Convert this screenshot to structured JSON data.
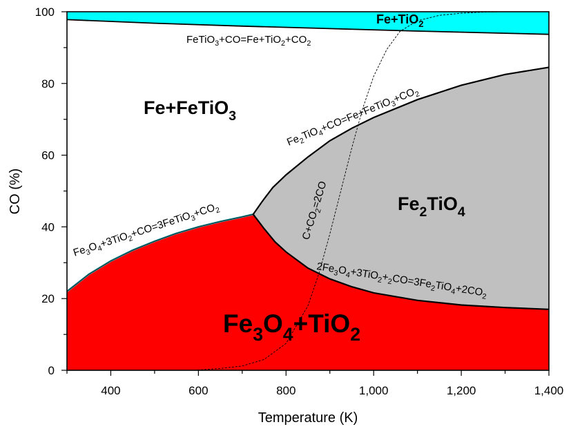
{
  "chart_data": {
    "type": "area",
    "title": "",
    "xlabel": "Temperature (K)",
    "ylabel": "CO (%)",
    "xlim": [
      300,
      1400
    ],
    "ylim": [
      0,
      100
    ],
    "x_ticks": [
      400,
      600,
      800,
      1000,
      1200,
      1400
    ],
    "x_tick_labels": [
      "400",
      "600",
      "800",
      "1,000",
      "1,200",
      "1,400"
    ],
    "y_ticks": [
      0,
      20,
      40,
      60,
      80,
      100
    ],
    "y_tick_labels": [
      "0",
      "20",
      "40",
      "60",
      "80",
      "100"
    ],
    "colors": {
      "fe3o4_tio2": "#ff0000",
      "fe2tio4": "#c0c0c0",
      "fe_tio2": "#00ffff",
      "fe_fetio3": "#ffffff",
      "boundary": "#000000",
      "cyan_edge": "#2ca6b0"
    },
    "regions": [
      {
        "id": "fe_tio2",
        "parts": [
          "Fe+TiO",
          "2"
        ]
      },
      {
        "id": "fe_fetio3",
        "parts": [
          "Fe+FeTiO",
          "3"
        ]
      },
      {
        "id": "fe2tio4",
        "parts": [
          "Fe",
          "2",
          "TiO",
          "4"
        ]
      },
      {
        "id": "fe3o4_tio2",
        "parts": [
          "Fe",
          "3",
          "O",
          "4",
          "+TiO",
          "2"
        ]
      }
    ],
    "reactions": [
      {
        "id": "fetio3_reduction",
        "parts": [
          "FeTiO",
          "3",
          "+CO=Fe+TiO",
          "2",
          "+CO",
          "2"
        ]
      },
      {
        "id": "fe2tio4_reduction",
        "parts": [
          "Fe",
          "2",
          "TiO",
          "4",
          "+CO=Fe+FeTiO",
          "3",
          "+CO",
          "2"
        ]
      },
      {
        "id": "fe3o4_to_fetio3",
        "parts": [
          "Fe",
          "3",
          "O",
          "4",
          "+3TiO",
          "2",
          "+CO=3FeTiO",
          "3",
          "+CO",
          "2"
        ]
      },
      {
        "id": "fe3o4_to_fe2tio4",
        "parts": [
          "2Fe",
          "3",
          "O",
          "4",
          "+3TiO",
          "2",
          "+",
          "2",
          "CO=3Fe",
          "2",
          "TiO",
          "4",
          "+2CO",
          "2"
        ]
      },
      {
        "id": "boudouard",
        "parts": [
          "C+CO",
          "2",
          "=2CO"
        ]
      }
    ],
    "series": [
      {
        "name": "FeTiO3+CO=Fe+TiO2+CO2",
        "x": [
          300,
          500,
          700,
          900,
          1100,
          1300,
          1400
        ],
        "y": [
          97.8,
          96.8,
          96.0,
          95.3,
          94.6,
          94.0,
          93.7
        ]
      },
      {
        "name": "Fe3O4+3TiO2+CO=3FeTiO3+CO2",
        "x": [
          300,
          350,
          400,
          450,
          500,
          550,
          600,
          650,
          700,
          725
        ],
        "y": [
          22,
          26.8,
          30.5,
          33.5,
          36.0,
          38.2,
          40.0,
          41.5,
          42.8,
          43.5
        ]
      },
      {
        "name": "Fe2TiO4+CO=Fe+FeTiO3+CO2",
        "x": [
          725,
          745,
          770,
          800,
          850,
          900,
          950,
          1000,
          1100,
          1200,
          1300,
          1400
        ],
        "y": [
          43.5,
          47.0,
          51.0,
          54.5,
          59.5,
          64.0,
          67.5,
          70.5,
          75.5,
          79.5,
          82.5,
          84.5
        ]
      },
      {
        "name": "2Fe3O4+3TiO2+2CO=3Fe2TiO4+2CO2",
        "x": [
          725,
          750,
          775,
          800,
          850,
          900,
          950,
          1000,
          1100,
          1200,
          1300,
          1400
        ],
        "y": [
          43.5,
          39.5,
          35.8,
          33.0,
          28.5,
          25.5,
          23.3,
          21.6,
          19.5,
          18.2,
          17.5,
          17.0
        ]
      },
      {
        "name": "C+CO2=2CO",
        "x": [
          590,
          650,
          700,
          750,
          800,
          850,
          875,
          900,
          925,
          950,
          975,
          1000,
          1030,
          1060,
          1100,
          1150,
          1200,
          1250,
          1300
        ],
        "y": [
          0,
          0.5,
          1.2,
          3,
          7.5,
          18,
          27,
          38,
          50,
          62,
          73,
          82,
          89.5,
          94.5,
          97.5,
          99,
          99.6,
          99.9,
          100
        ]
      }
    ]
  }
}
